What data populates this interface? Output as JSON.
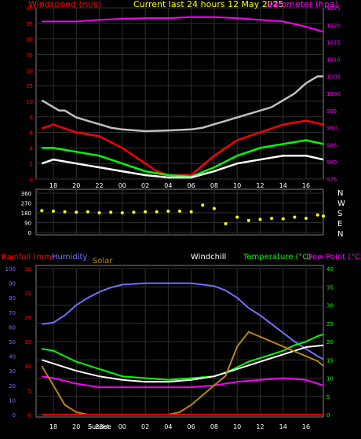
{
  "chart_data": [
    {
      "type": "line",
      "title": "Current last 24 hours 12 May 2025",
      "ylabel_left": "Windspeed (m/s)",
      "ylabel_right": "Barometer (hpa)",
      "x_ticks": [
        "18",
        "20",
        "22",
        "00",
        "02",
        "04",
        "06",
        "08",
        "10",
        "12",
        "14",
        "16"
      ],
      "y_ticks_left": [
        "0",
        "2",
        "4",
        "6",
        "8",
        "10",
        "15",
        "20",
        "25",
        "30",
        "35",
        "40"
      ],
      "y_ticks_right": [
        "975",
        "980",
        "985",
        "990",
        "995",
        "1000",
        "1005",
        "1010",
        "1015",
        "1020",
        "1025"
      ],
      "ylim_right": [
        975,
        1025
      ],
      "grid": true,
      "series": [
        {
          "name": "Barometer",
          "color": "#ff00ff",
          "x": [
            17,
            18,
            20,
            22,
            24,
            26,
            28,
            30,
            32,
            34,
            36,
            38,
            40,
            41,
            41.5
          ],
          "values": [
            1021,
            1021,
            1021,
            1021.5,
            1021.8,
            1022,
            1022,
            1022.3,
            1022.3,
            1022,
            1021.5,
            1021,
            1019.5,
            1018.5,
            1018
          ]
        },
        {
          "color": "#c0c0c0",
          "x": [
            17,
            17.5,
            18,
            18.5,
            19,
            19.5,
            20,
            21,
            22,
            23,
            24,
            26,
            28,
            30,
            31,
            32,
            33,
            34,
            35,
            36,
            37,
            38,
            39,
            40,
            41,
            41.5
          ],
          "values": [
            998,
            997,
            996,
            995,
            995,
            994,
            993,
            992,
            991,
            990,
            989.5,
            989,
            989.2,
            989.5,
            990,
            991,
            992,
            993,
            994,
            995,
            996,
            998,
            1000,
            1003,
            1005,
            1005
          ]
        },
        {
          "color": "#ff0000",
          "x": [
            17,
            18,
            20,
            22,
            24,
            26,
            27,
            28,
            30,
            32,
            34,
            36,
            38,
            40,
            41.5
          ],
          "values": [
            6.5,
            7,
            6,
            5.5,
            4,
            2,
            1,
            0.5,
            0.5,
            3,
            5,
            6,
            7,
            7.5,
            7
          ]
        },
        {
          "color": "#00ff00",
          "x": [
            17,
            18,
            20,
            22,
            24,
            26,
            28,
            30,
            32,
            34,
            36,
            38,
            40,
            41.5
          ],
          "values": [
            4,
            4,
            3.5,
            3,
            2,
            1,
            0.5,
            0.3,
            1.5,
            3,
            4,
            4.5,
            5,
            4.5
          ]
        },
        {
          "color": "#ffffff",
          "x": [
            17,
            18,
            20,
            22,
            24,
            26,
            28,
            30,
            32,
            34,
            36,
            38,
            40,
            41.5
          ],
          "values": [
            2,
            2.5,
            2,
            1.5,
            1,
            0.5,
            0.2,
            0.2,
            1,
            2,
            2.5,
            3,
            3,
            2.5
          ]
        }
      ]
    },
    {
      "type": "scatter",
      "x_ticks": [
        "18",
        "20",
        "22",
        "00",
        "02",
        "04",
        "06",
        "08",
        "10",
        "12",
        "14",
        "16"
      ],
      "y_ticks": [
        "0",
        "90",
        "180",
        "270",
        "360"
      ],
      "right_labels": [
        "N",
        "W",
        "S",
        "E",
        "N"
      ],
      "ylim": [
        0,
        360
      ],
      "series": [
        {
          "color": "#ffff00",
          "x": [
            17,
            18,
            19,
            20,
            21,
            22,
            23,
            24,
            25,
            26,
            27,
            28,
            29,
            30,
            31,
            32,
            33,
            34,
            35,
            36,
            37,
            38,
            39,
            40,
            41,
            41.5
          ],
          "values": [
            200,
            195,
            190,
            185,
            190,
            180,
            185,
            180,
            185,
            190,
            190,
            195,
            195,
            190,
            250,
            220,
            80,
            140,
            110,
            120,
            130,
            125,
            140,
            130,
            160,
            150
          ]
        }
      ]
    },
    {
      "type": "line",
      "legend": [
        {
          "label": "Rainfall (mm)",
          "color": "#ff0000"
        },
        {
          "label": "Humidity",
          "color": "#7070ff"
        },
        {
          "label": "Solar",
          "color": "#b8860b"
        },
        {
          "label": "Windchill",
          "color": "#ffffff"
        },
        {
          "label": "Temperature (°C)",
          "color": "#00ff00"
        },
        {
          "label": "Dew Point (°C)",
          "color": "#ff00ff"
        }
      ],
      "x_ticks": [
        "18",
        "20",
        "22",
        "00",
        "02",
        "04",
        "06",
        "08",
        "10",
        "12",
        "14",
        "16"
      ],
      "sunrise_label": "Sunrise",
      "sunset_label": "Sunset",
      "y_ticks_humidity": [
        "0",
        "10",
        "20",
        "30",
        "40",
        "50",
        "60",
        "70",
        "80",
        "90",
        "100"
      ],
      "y_ticks_rain": [
        "0",
        "5",
        "10",
        "15",
        "20",
        "25",
        "30"
      ],
      "y_ticks_temp": [
        "0",
        "5",
        "10",
        "15",
        "20",
        "25",
        "30",
        "35",
        "40"
      ],
      "ylim_temp": [
        0,
        40
      ],
      "series": [
        {
          "name": "Humidity",
          "color": "#7070ff",
          "axis": "humidity",
          "x": [
            17,
            18,
            19,
            20,
            21,
            22,
            23,
            24,
            26,
            28,
            30,
            32,
            33,
            34,
            35,
            36,
            37,
            38,
            39,
            40,
            41,
            41.5
          ],
          "values": [
            62,
            63,
            68,
            75,
            80,
            84,
            87,
            89,
            90,
            90,
            90,
            88,
            85,
            80,
            73,
            68,
            62,
            56,
            50,
            45,
            40,
            38
          ]
        },
        {
          "name": "Temperature (°C)",
          "color": "#00ff00",
          "axis": "temp",
          "x": [
            17,
            18,
            19,
            20,
            21,
            22,
            23,
            24,
            26,
            28,
            30,
            32,
            33,
            34,
            35,
            36,
            37,
            38,
            39,
            40,
            41,
            41.5
          ],
          "values": [
            18,
            17.5,
            16,
            14.5,
            13.5,
            12.5,
            11.5,
            10.5,
            10,
            9.5,
            10,
            10.5,
            11.5,
            13,
            14.5,
            15.5,
            16.5,
            17.5,
            19,
            20,
            21.5,
            22
          ]
        },
        {
          "name": "Windchill",
          "color": "#ffffff",
          "axis": "temp",
          "x": [
            17,
            18,
            20,
            22,
            24,
            26,
            28,
            30,
            32,
            34,
            36,
            38,
            40,
            41.5
          ],
          "values": [
            15,
            14,
            12,
            10.5,
            9.5,
            9,
            9,
            9.5,
            10.5,
            12.5,
            14.5,
            16.5,
            18.5,
            19
          ]
        },
        {
          "name": "Dew Point (°C)",
          "color": "#ff00ff",
          "axis": "temp",
          "x": [
            17,
            18,
            20,
            22,
            24,
            26,
            28,
            30,
            32,
            34,
            36,
            38,
            40,
            41.5
          ],
          "values": [
            10.5,
            10,
            8.5,
            7.5,
            7.5,
            7.5,
            7.5,
            7.5,
            8,
            9,
            9.5,
            10,
            9.5,
            8
          ]
        },
        {
          "name": "Solar",
          "color": "#b8860b",
          "axis": "rain",
          "x": [
            17,
            17.5,
            18,
            18.5,
            19,
            20,
            21,
            21.5,
            22,
            24,
            26,
            28,
            29,
            30,
            31,
            32,
            33,
            34,
            35,
            36,
            37,
            38,
            39,
            40,
            41,
            41.5
          ],
          "values": [
            10,
            8,
            6,
            4,
            2,
            0.5,
            0,
            0,
            0,
            0,
            0,
            0,
            0.5,
            2,
            4,
            6,
            8,
            14,
            17,
            16,
            15,
            14,
            13,
            12,
            11,
            10
          ]
        },
        {
          "name": "Rainfall (mm)",
          "color": "#ff0000",
          "axis": "rain",
          "x": [
            17,
            41.5
          ],
          "values": [
            0,
            0
          ]
        }
      ]
    }
  ]
}
